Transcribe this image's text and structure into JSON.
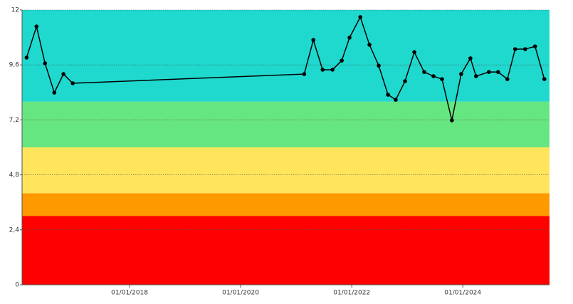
{
  "chart_data": {
    "type": "line",
    "x": [
      "2016-02-24",
      "2016-04-29",
      "2016-06-24",
      "2016-08-24",
      "2016-10-23",
      "2016-12-23",
      "2021-02-22",
      "2021-04-23",
      "2021-06-23",
      "2021-08-27",
      "2021-10-27",
      "2021-12-17",
      "2022-02-26",
      "2022-04-27",
      "2022-06-27",
      "2022-08-27",
      "2022-10-17",
      "2022-12-17",
      "2023-02-16",
      "2023-04-22",
      "2023-06-22",
      "2023-08-17",
      "2023-10-21",
      "2023-12-21",
      "2024-02-20",
      "2024-03-28",
      "2024-06-20",
      "2024-08-20",
      "2024-10-20",
      "2024-12-10",
      "2025-02-14",
      "2025-04-20",
      "2025-06-20"
    ],
    "values": [
      9.92,
      11.28,
      9.67,
      8.39,
      9.2,
      8.8,
      9.2,
      10.69,
      9.39,
      9.39,
      9.79,
      10.79,
      11.69,
      10.48,
      9.57,
      8.3,
      8.08,
      8.89,
      10.16,
      9.29,
      9.11,
      8.98,
      7.18,
      9.2,
      9.89,
      9.11,
      9.29,
      9.29,
      8.98,
      10.29,
      10.29,
      10.41,
      8.98
    ],
    "color": "#000000",
    "xlim": [
      "2016-01-25",
      "2025-07-24"
    ],
    "xticks": [
      {
        "value": "2018-01-01",
        "label": "01/01/2018"
      },
      {
        "value": "2020-01-01",
        "label": "01/01/2020"
      },
      {
        "value": "2022-01-01",
        "label": "01/01/2022"
      },
      {
        "value": "2024-01-01",
        "label": "01/01/2024"
      }
    ],
    "ylim": [
      0,
      12
    ],
    "yticks": [
      0,
      {
        "value": 2.4,
        "label": "2,4"
      },
      {
        "value": 4.8,
        "label": "4,8"
      },
      {
        "value": 7.2,
        "label": "7,2"
      },
      {
        "value": 9.6,
        "label": "9,6"
      },
      12
    ],
    "grid": true,
    "bands": [
      {
        "from": 0,
        "to": 3,
        "color": "#ff0000"
      },
      {
        "from": 3,
        "to": 4,
        "color": "#ff9900"
      },
      {
        "from": 4,
        "to": 6,
        "color": "#ffe45c"
      },
      {
        "from": 6,
        "to": 8,
        "color": "#66e680"
      },
      {
        "from": 8,
        "to": 12,
        "color": "#1fd9cf"
      }
    ]
  }
}
